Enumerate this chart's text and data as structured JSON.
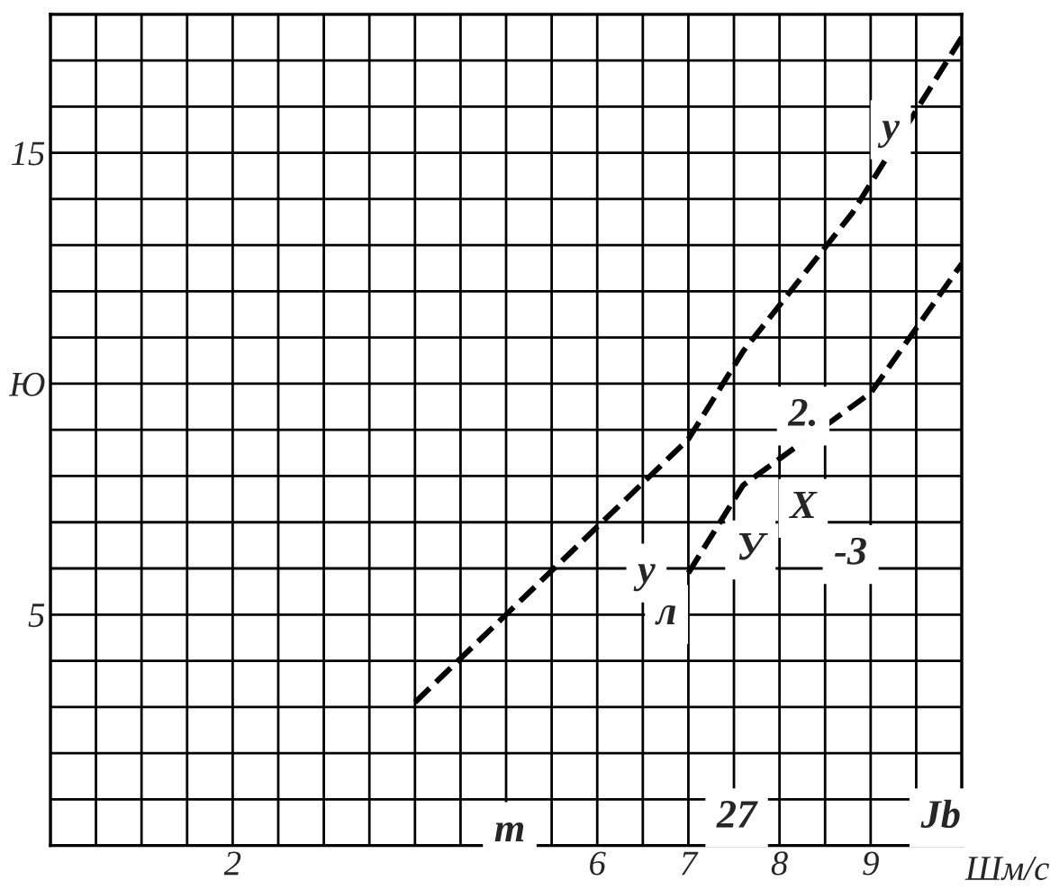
{
  "chart_data": {
    "type": "line",
    "xlabel": "Шм/с",
    "xlim": [
      0,
      10
    ],
    "ylim": [
      0,
      18
    ],
    "xticks": [
      {
        "value": 0,
        "label": null
      },
      {
        "value": 0.5,
        "label": null
      },
      {
        "value": 1,
        "label": null
      },
      {
        "value": 1.5,
        "label": null
      },
      2,
      {
        "value": 2.5,
        "label": null
      },
      {
        "value": 3,
        "label": null
      },
      {
        "value": 3.5,
        "label": null
      },
      {
        "value": 4,
        "label": null
      },
      {
        "value": 4.5,
        "label": null
      },
      {
        "value": 5,
        "label": null
      },
      {
        "value": 5.5,
        "label": null
      },
      6,
      {
        "value": 6.5,
        "label": null
      },
      7,
      {
        "value": 7.5,
        "label": null
      },
      8,
      {
        "value": 8.5,
        "label": null
      },
      9,
      {
        "value": 9.5,
        "label": null
      },
      {
        "value": 10,
        "label": null
      }
    ],
    "yticks": [
      {
        "value": 0,
        "label": null
      },
      {
        "value": 1,
        "label": null
      },
      {
        "value": 2,
        "label": null
      },
      {
        "value": 3,
        "label": null
      },
      {
        "value": 4,
        "label": null
      },
      5,
      {
        "value": 6,
        "label": null
      },
      {
        "value": 7,
        "label": null
      },
      {
        "value": 8,
        "label": null
      },
      {
        "value": 9,
        "label": null
      },
      {
        "value": 10,
        "label": "Ю"
      },
      {
        "value": 11,
        "label": null
      },
      {
        "value": 12,
        "label": null
      },
      {
        "value": 13,
        "label": null
      },
      {
        "value": 14,
        "label": null
      },
      15,
      {
        "value": 16,
        "label": null
      },
      {
        "value": 17,
        "label": null
      },
      {
        "value": 18,
        "label": null
      }
    ],
    "grid": true,
    "line_style": "dashed",
    "marker": "none",
    "series": [
      {
        "color": "#000000",
        "x": [
          4.0,
          7.0,
          7.6,
          8.8,
          10.0
        ],
        "values": [
          3.1,
          8.8,
          10.7,
          13.7,
          17.5
        ]
      },
      {
        "color": "#000000",
        "x": [
          7.0,
          7.6,
          9.0,
          10.0
        ],
        "values": [
          5.9,
          7.8,
          9.8,
          12.6
        ]
      }
    ],
    "annotations": [
      {
        "text": "у",
        "x": 9.22,
        "y": 15.5
      },
      {
        "text": "2.",
        "x": 8.26,
        "y": 9.3
      },
      {
        "text": "X",
        "x": 8.26,
        "y": 7.3
      },
      {
        "text": "У",
        "x": 7.68,
        "y": 6.4
      },
      {
        "text": "-3",
        "x": 8.78,
        "y": 6.3
      },
      {
        "text": "y",
        "x": 6.54,
        "y": 5.9
      },
      {
        "text": "л",
        "x": 6.76,
        "y": 5.0
      },
      {
        "text": "m",
        "x": 5.04,
        "y": 0.3
      },
      {
        "text": "27",
        "x": 7.53,
        "y": 0.6
      },
      {
        "text": "Jb",
        "x": 9.77,
        "y": 0.6
      }
    ]
  }
}
